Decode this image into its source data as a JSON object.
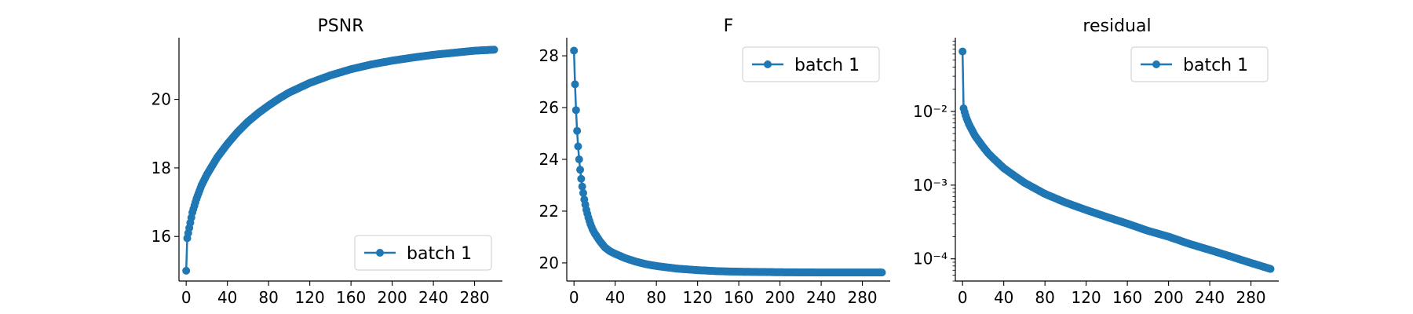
{
  "chart_data": [
    {
      "type": "line",
      "title": "PSNR",
      "xlabel": "",
      "ylabel": "",
      "xlim": [
        -7,
        307
      ],
      "ylim": [
        14.7,
        21.8
      ],
      "yscale": "linear",
      "xticks": [
        0,
        40,
        80,
        120,
        160,
        200,
        240,
        280
      ],
      "xtick_labels": [
        "0",
        "40",
        "80",
        "120",
        "160",
        "200",
        "240",
        "280"
      ],
      "yticks": [
        16,
        18,
        20
      ],
      "ytick_labels": [
        "16",
        "18",
        "20"
      ],
      "grid": false,
      "legend_position": "lower right",
      "series": [
        {
          "name": "batch 1",
          "color": "#1f77b4",
          "marker": "circle",
          "x": [
            0,
            1,
            2,
            3,
            4,
            5,
            6,
            7,
            8,
            9,
            10,
            15,
            20,
            25,
            30,
            40,
            50,
            60,
            70,
            80,
            90,
            100,
            120,
            140,
            160,
            180,
            200,
            220,
            240,
            260,
            280,
            299
          ],
          "y": [
            15.0,
            15.95,
            16.1,
            16.25,
            16.4,
            16.55,
            16.7,
            16.8,
            16.9,
            17.0,
            17.1,
            17.5,
            17.8,
            18.05,
            18.3,
            18.7,
            19.05,
            19.35,
            19.6,
            19.82,
            20.02,
            20.2,
            20.48,
            20.7,
            20.88,
            21.02,
            21.13,
            21.22,
            21.3,
            21.36,
            21.42,
            21.45
          ]
        }
      ]
    },
    {
      "type": "line",
      "title": "F",
      "xlabel": "",
      "ylabel": "",
      "xlim": [
        -7,
        307
      ],
      "ylim": [
        19.3,
        28.7
      ],
      "yscale": "linear",
      "xticks": [
        0,
        40,
        80,
        120,
        160,
        200,
        240,
        280
      ],
      "xtick_labels": [
        "0",
        "40",
        "80",
        "120",
        "160",
        "200",
        "240",
        "280"
      ],
      "yticks": [
        20,
        22,
        24,
        26,
        28
      ],
      "ytick_labels": [
        "20",
        "22",
        "24",
        "26",
        "28"
      ],
      "grid": false,
      "legend_position": "upper right",
      "series": [
        {
          "name": "batch 1",
          "color": "#1f77b4",
          "marker": "circle",
          "x": [
            0,
            1,
            2,
            3,
            4,
            5,
            6,
            7,
            8,
            9,
            10,
            12,
            14,
            16,
            18,
            20,
            25,
            30,
            35,
            40,
            50,
            60,
            70,
            80,
            100,
            120,
            140,
            160,
            200,
            240,
            280,
            299
          ],
          "y": [
            28.2,
            26.9,
            25.9,
            25.1,
            24.5,
            24.0,
            23.6,
            23.25,
            22.95,
            22.7,
            22.45,
            22.05,
            21.75,
            21.5,
            21.3,
            21.15,
            20.85,
            20.6,
            20.45,
            20.35,
            20.18,
            20.05,
            19.95,
            19.88,
            19.78,
            19.72,
            19.68,
            19.66,
            19.64,
            19.63,
            19.63,
            19.63
          ]
        }
      ]
    },
    {
      "type": "line",
      "title": "residual",
      "xlabel": "",
      "ylabel": "",
      "xlim": [
        -7,
        307
      ],
      "ylim": [
        5e-05,
        0.1
      ],
      "yscale": "log",
      "xticks": [
        0,
        40,
        80,
        120,
        160,
        200,
        240,
        280
      ],
      "xtick_labels": [
        "0",
        "40",
        "80",
        "120",
        "160",
        "200",
        "240",
        "280"
      ],
      "yticks": [
        0.0001,
        0.001,
        0.01
      ],
      "ytick_labels": [
        "10⁻⁴",
        "10⁻³",
        "10⁻²"
      ],
      "grid": false,
      "legend_position": "upper right",
      "series": [
        {
          "name": "batch 1",
          "color": "#1f77b4",
          "marker": "circle",
          "x": [
            0,
            1,
            2,
            3,
            4,
            5,
            6,
            8,
            10,
            12,
            15,
            20,
            25,
            30,
            40,
            50,
            60,
            80,
            100,
            120,
            140,
            160,
            180,
            200,
            220,
            240,
            260,
            280,
            299
          ],
          "y": [
            0.065,
            0.011,
            0.0098,
            0.0088,
            0.008,
            0.0074,
            0.0068,
            0.006,
            0.0053,
            0.0047,
            0.0041,
            0.0033,
            0.0027,
            0.0023,
            0.0017,
            0.00135,
            0.00108,
            0.00076,
            0.00058,
            0.00046,
            0.00037,
            0.0003,
            0.00024,
            0.0002,
            0.00016,
            0.000132,
            0.000108,
            8.8e-05,
            7.3e-05
          ]
        }
      ]
    }
  ]
}
